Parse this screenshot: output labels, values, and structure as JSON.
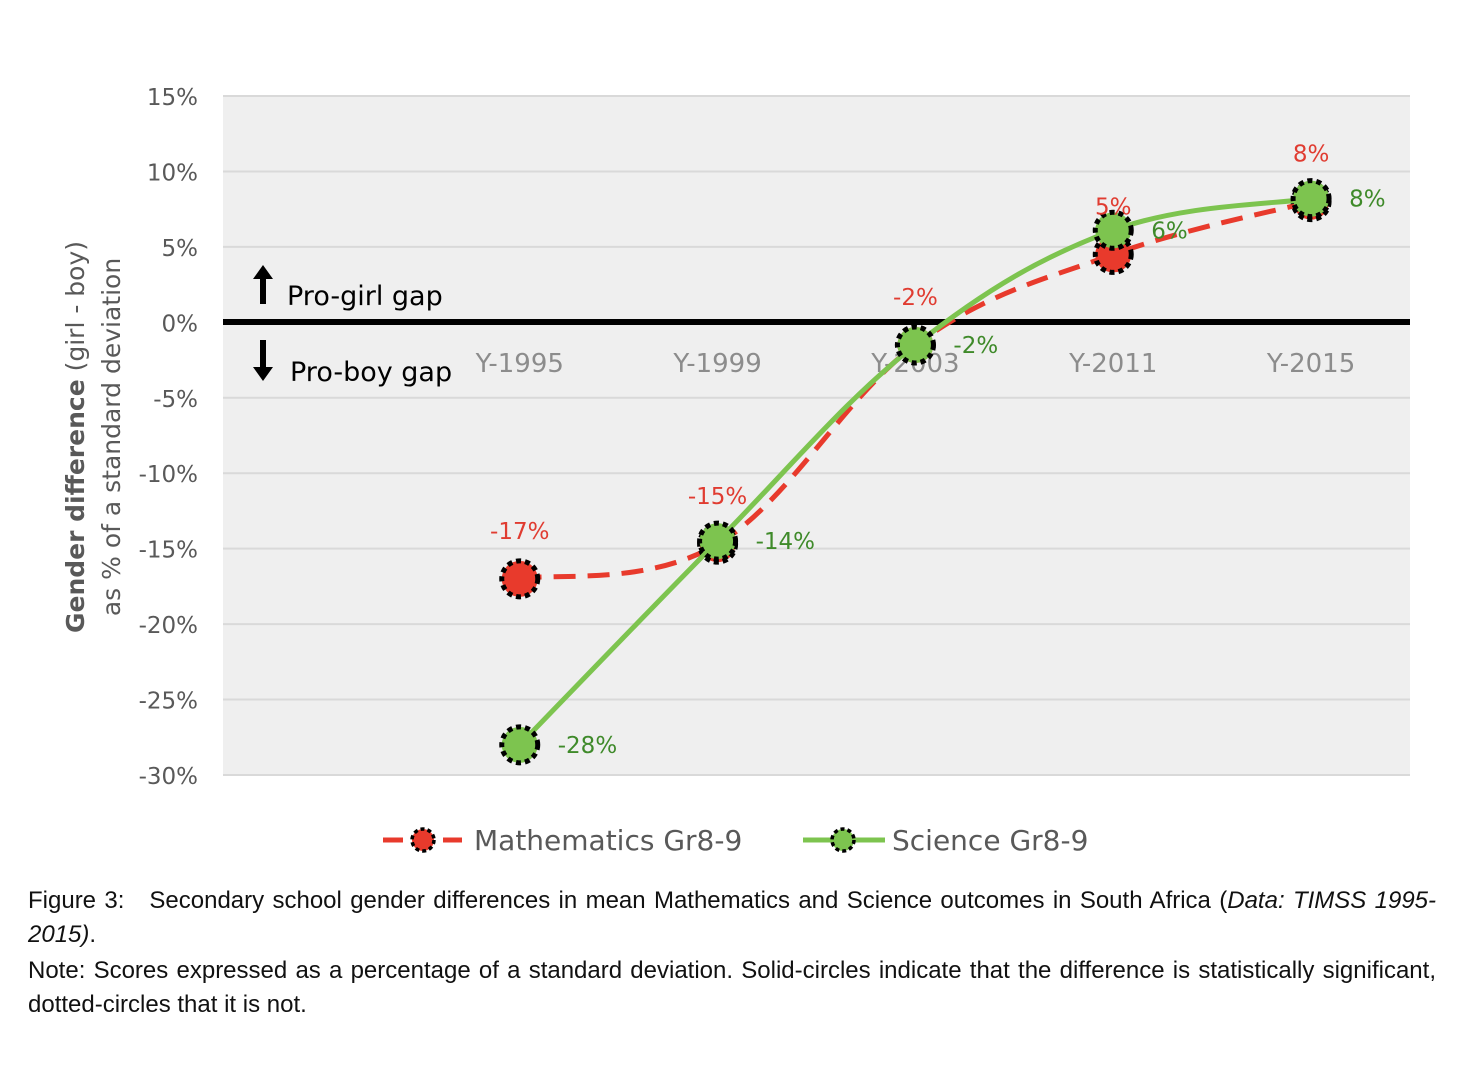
{
  "chart_data": {
    "type": "line",
    "categories": [
      "Y-1995",
      "Y-1999",
      "Y-2003",
      "Y-2011",
      "Y-2015"
    ],
    "series": [
      {
        "name": "Mathematics Gr8-9",
        "values": [
          -17,
          -15,
          -2,
          5,
          8
        ],
        "plot_values": [
          -17,
          -14.7,
          -1.5,
          4.5,
          8
        ],
        "labels": [
          "-17%",
          "-15%",
          "-2%",
          "5%",
          "8%"
        ],
        "color": "#e83a2c",
        "style": "dashed",
        "label_position": "above"
      },
      {
        "name": "Science Gr8-9",
        "values": [
          -28,
          -14,
          -2,
          6,
          8
        ],
        "plot_values": [
          -28,
          -14.5,
          -1.5,
          6.1,
          8.2
        ],
        "labels": [
          "-28%",
          "-14%",
          "-2%",
          "6%",
          "8%"
        ],
        "color": "#7dc44f",
        "style": "solid",
        "label_position": "right"
      }
    ],
    "ylim": [
      -30,
      15
    ],
    "yticks": [
      15,
      10,
      5,
      0,
      -5,
      -10,
      -15,
      -20,
      -25,
      -30
    ],
    "ytick_labels": [
      "15%",
      "10%",
      "5%",
      "0%",
      "-5%",
      "-10%",
      "-15%",
      "-20%",
      "-25%",
      "-30%"
    ],
    "ylabel_bold": "Gender difference",
    "ylabel_rest": " (girl - boy)",
    "ylabel_line2": "as % of a standard deviation",
    "xlabel": "",
    "legend_position": "bottom",
    "grid": true,
    "annotations": {
      "pro_girl": "Pro-girl gap",
      "pro_boy": "Pro-boy gap"
    },
    "colors": {
      "math_label": "#e03c31",
      "sci_label": "#3f8a2a",
      "axis_text": "#595959",
      "plot_bg": "#efefef",
      "grid": "#d9d9d9"
    }
  },
  "caption": {
    "label": "Figure 3:",
    "text": "Secondary school gender differences in mean Mathematics and Science outcomes in South Africa (",
    "italic": "Data: TIMSS 1995-2015)",
    "end": ".",
    "note": "Note: Scores expressed as a percentage of a standard deviation. Solid-circles indicate that the difference is statistically significant, dotted-circles that it is not."
  }
}
